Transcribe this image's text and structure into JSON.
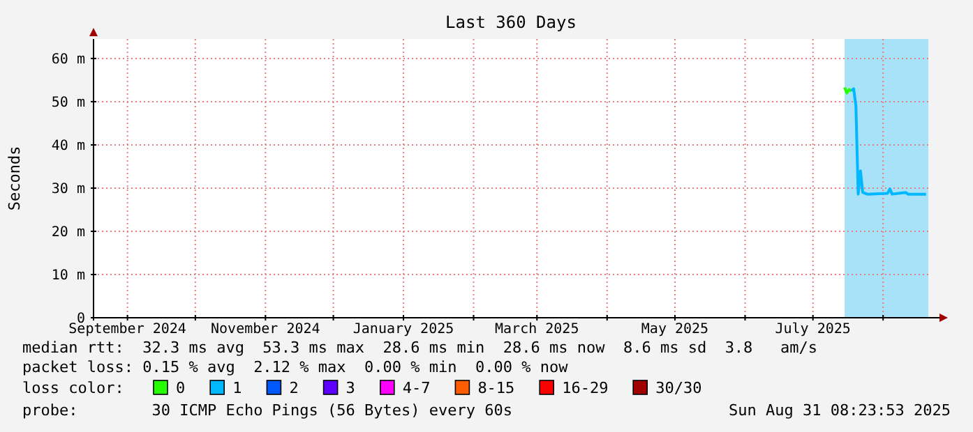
{
  "chart_data": {
    "type": "line",
    "title": "Last 360 Days",
    "ylabel": "Seconds",
    "legend_title": "loss color:",
    "legend": "bottom",
    "grid": true,
    "marker": "none",
    "line_style": "solid",
    "xlim": [
      "2024-08-17",
      "2025-08-21"
    ],
    "xticks": [
      {
        "value": "2024-09-01",
        "label": "September 2024"
      },
      {
        "value": "2024-10-01",
        "label": null
      },
      {
        "value": "2024-11-01",
        "label": "November 2024"
      },
      {
        "value": "2024-12-01",
        "label": null
      },
      {
        "value": "2025-01-01",
        "label": "January 2025"
      },
      {
        "value": "2025-02-01",
        "label": null
      },
      {
        "value": "2025-03-01",
        "label": "March 2025"
      },
      {
        "value": "2025-04-01",
        "label": null
      },
      {
        "value": "2025-05-01",
        "label": "May 2025"
      },
      {
        "value": "2025-06-01",
        "label": null
      },
      {
        "value": "2025-07-01",
        "label": "July 2025"
      },
      {
        "value": "2025-08-01",
        "label": null
      }
    ],
    "ylim": [
      0,
      64.5
    ],
    "yticks": [
      0,
      {
        "value": 10,
        "label": "10 m"
      },
      {
        "value": 20,
        "label": "20 m"
      },
      {
        "value": 30,
        "label": "30 m"
      },
      {
        "value": 40,
        "label": "40 m"
      },
      {
        "value": 50,
        "label": "50 m"
      },
      {
        "value": 60,
        "label": "60 m"
      }
    ],
    "bands": [
      {
        "axis": "x",
        "from": "2025-07-15",
        "to": "2025-08-21",
        "color": "#a8e2f8"
      }
    ],
    "series": [
      {
        "name": "0",
        "color": "#26ff00",
        "x": [
          "2025-07-15",
          "2025-07-16",
          "2025-07-17",
          "2025-07-18"
        ],
        "values": [
          53.3,
          52,
          52.8,
          52.5
        ]
      },
      {
        "name": "1",
        "color": "#00b8ff",
        "x": [
          "2025-07-18",
          "2025-07-19",
          "2025-07-20",
          "2025-07-21",
          "2025-07-22",
          "2025-07-23",
          "2025-07-25",
          "2025-08-03",
          "2025-08-04",
          "2025-08-05",
          "2025-08-11",
          "2025-08-12",
          "2025-08-20"
        ],
        "values": [
          52.5,
          53,
          49,
          28.6,
          34,
          29,
          28.6,
          28.8,
          29.8,
          28.6,
          29,
          28.6,
          28.6
        ]
      },
      {
        "name": "2",
        "color": "#0059ff"
      },
      {
        "name": "3",
        "color": "#5e00ff"
      },
      {
        "name": "4-7",
        "color": "#ff00ff"
      },
      {
        "name": "8-15",
        "color": "#ff5e00"
      },
      {
        "name": "16-29",
        "color": "#ff0000"
      },
      {
        "name": "30/30",
        "color": "#a10000"
      }
    ],
    "annotations": [
      "median rtt:  32.3 ms avg  53.3 ms max  28.6 ms min  28.6 ms now  8.6 ms sd  3.8   am/s",
      "packet loss: 0.15 % avg  2.12 % max  0.00 % min  0.00 % now",
      "probe:        30 ICMP Echo Pings (56 Bytes) every 60s",
      "Sun Aug 31 08:23:53 2025"
    ]
  }
}
